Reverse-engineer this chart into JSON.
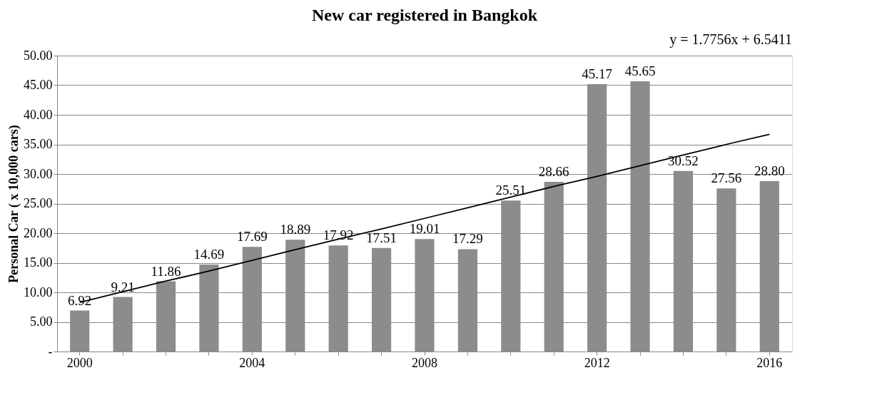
{
  "chart_data": {
    "type": "bar",
    "title": "New car registered in Bangkok",
    "ylabel": "Personal Car ( x 10,000 cars)",
    "categories": [
      "2000",
      null,
      null,
      null,
      "2004",
      null,
      null,
      null,
      "2008",
      null,
      null,
      null,
      "2012",
      null,
      null,
      null,
      "2016"
    ],
    "series": [
      {
        "color": "#8c8c8c",
        "values": [
          6.92,
          9.21,
          11.86,
          14.69,
          17.69,
          18.89,
          17.92,
          17.51,
          19.01,
          17.29,
          25.51,
          28.66,
          45.17,
          45.65,
          30.52,
          27.56,
          28.8
        ],
        "value_labels": [
          "6.92",
          "9.21",
          "11.86",
          "14.69",
          "17.69",
          "18.89",
          "17.92",
          "17.51",
          "19.01",
          "17.29",
          "25.51",
          "28.66",
          "45.17",
          "45.65",
          "30.52",
          "27.56",
          "28.80"
        ]
      },
      {
        "type": "line",
        "color": "#000000",
        "values": [
          8.3,
          10.1,
          11.9,
          13.6,
          15.4,
          17.2,
          19.0,
          20.7,
          22.5,
          24.3,
          26.1,
          27.9,
          29.6,
          31.4,
          33.2,
          35.0,
          36.7
        ]
      }
    ],
    "ylim": [
      0,
      50
    ],
    "yticks": [
      {
        "value": 0,
        "label": "-"
      },
      {
        "value": 5,
        "label": "5.00"
      },
      {
        "value": 10,
        "label": "10.00"
      },
      {
        "value": 15,
        "label": "15.00"
      },
      {
        "value": 20,
        "label": "20.00"
      },
      {
        "value": 25,
        "label": "25.00"
      },
      {
        "value": 30,
        "label": "30.00"
      },
      {
        "value": 35,
        "label": "35.00"
      },
      {
        "value": 40,
        "label": "40.00"
      },
      {
        "value": 45,
        "label": "45.00"
      },
      {
        "value": 50,
        "label": "50.00"
      }
    ],
    "grid": "y",
    "annotations": [
      "y = 1.7756x + 6.5411"
    ]
  }
}
